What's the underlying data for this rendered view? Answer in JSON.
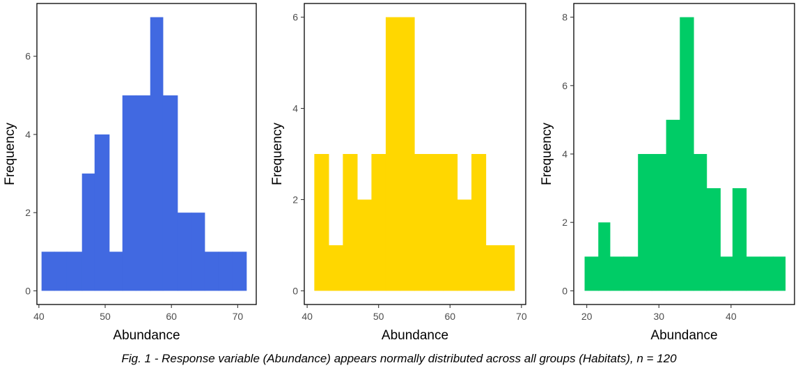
{
  "caption": "Fig. 1 - Response variable (Abundance) appears normally distributed across all groups (Habitats), n = 120",
  "chart_data": [
    {
      "type": "bar",
      "color": "#4169E1",
      "xlabel": "Abundance",
      "ylabel": "Frequency",
      "x_ticks": [
        40,
        50,
        60,
        70
      ],
      "y_ticks": [
        0,
        2,
        4,
        6
      ],
      "xlim": [
        39.7,
        72.8
      ],
      "ylim": [
        -0.35,
        7.35
      ],
      "bins": [
        {
          "x0": 40.4,
          "x1": 42.3,
          "count": 1
        },
        {
          "x0": 42.3,
          "x1": 44.2,
          "count": 1
        },
        {
          "x0": 44.2,
          "x1": 46.5,
          "count": 1
        },
        {
          "x0": 46.5,
          "x1": 48.4,
          "count": 3
        },
        {
          "x0": 48.4,
          "x1": 50.6,
          "count": 4
        },
        {
          "x0": 50.6,
          "x1": 52.6,
          "count": 1
        },
        {
          "x0": 52.6,
          "x1": 54.6,
          "count": 5
        },
        {
          "x0": 54.6,
          "x1": 56.8,
          "count": 5
        },
        {
          "x0": 56.8,
          "x1": 58.7,
          "count": 7
        },
        {
          "x0": 58.7,
          "x1": 60.9,
          "count": 5
        },
        {
          "x0": 60.9,
          "x1": 63.0,
          "count": 2
        },
        {
          "x0": 63.0,
          "x1": 65.0,
          "count": 2
        },
        {
          "x0": 65.0,
          "x1": 67.1,
          "count": 1
        },
        {
          "x0": 67.1,
          "x1": 69.2,
          "count": 1
        },
        {
          "x0": 69.2,
          "x1": 71.3,
          "count": 1
        }
      ]
    },
    {
      "type": "bar",
      "color": "#FFD700",
      "xlabel": "Abundance",
      "ylabel": "Frequency",
      "x_ticks": [
        40,
        50,
        60,
        70
      ],
      "y_ticks": [
        0,
        2,
        4,
        6
      ],
      "xlim": [
        39.6,
        70.6
      ],
      "ylim": [
        -0.3,
        6.3
      ],
      "bins": [
        {
          "x0": 41.0,
          "x1": 43.0,
          "count": 3
        },
        {
          "x0": 43.0,
          "x1": 45.0,
          "count": 1
        },
        {
          "x0": 45.0,
          "x1": 47.0,
          "count": 3
        },
        {
          "x0": 47.0,
          "x1": 49.0,
          "count": 2
        },
        {
          "x0": 49.0,
          "x1": 51.0,
          "count": 3
        },
        {
          "x0": 51.0,
          "x1": 53.0,
          "count": 6
        },
        {
          "x0": 53.0,
          "x1": 55.0,
          "count": 6
        },
        {
          "x0": 55.0,
          "x1": 57.0,
          "count": 3
        },
        {
          "x0": 57.0,
          "x1": 59.0,
          "count": 3
        },
        {
          "x0": 59.0,
          "x1": 61.0,
          "count": 3
        },
        {
          "x0": 61.0,
          "x1": 63.0,
          "count": 2
        },
        {
          "x0": 63.0,
          "x1": 65.0,
          "count": 3
        },
        {
          "x0": 65.0,
          "x1": 67.0,
          "count": 1
        },
        {
          "x0": 67.0,
          "x1": 69.0,
          "count": 1
        }
      ]
    },
    {
      "type": "bar",
      "color": "#00CC66",
      "xlabel": "Abundance",
      "ylabel": "Frequency",
      "x_ticks": [
        20,
        30,
        40
      ],
      "y_ticks": [
        0,
        2,
        4,
        6,
        8
      ],
      "xlim": [
        18.2,
        48.8
      ],
      "ylim": [
        -0.4,
        8.4
      ],
      "bins": [
        {
          "x0": 19.7,
          "x1": 21.6,
          "count": 1
        },
        {
          "x0": 21.6,
          "x1": 23.2,
          "count": 2
        },
        {
          "x0": 23.2,
          "x1": 25.1,
          "count": 1
        },
        {
          "x0": 25.1,
          "x1": 27.1,
          "count": 1
        },
        {
          "x0": 27.1,
          "x1": 29.0,
          "count": 4
        },
        {
          "x0": 29.0,
          "x1": 31.0,
          "count": 4
        },
        {
          "x0": 31.0,
          "x1": 32.9,
          "count": 5
        },
        {
          "x0": 32.9,
          "x1": 34.8,
          "count": 8
        },
        {
          "x0": 34.8,
          "x1": 36.6,
          "count": 4
        },
        {
          "x0": 36.6,
          "x1": 38.5,
          "count": 3
        },
        {
          "x0": 38.5,
          "x1": 40.2,
          "count": 1
        },
        {
          "x0": 40.2,
          "x1": 42.1,
          "count": 3
        },
        {
          "x0": 42.1,
          "x1": 44.0,
          "count": 1
        },
        {
          "x0": 44.0,
          "x1": 45.8,
          "count": 1
        },
        {
          "x0": 45.8,
          "x1": 47.5,
          "count": 1
        }
      ]
    }
  ]
}
